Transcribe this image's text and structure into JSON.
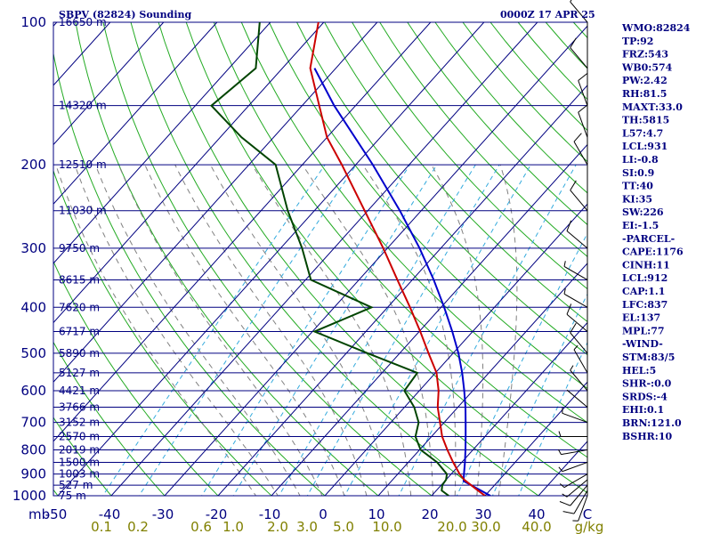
{
  "header": {
    "station": "SBPV (82824) Sounding",
    "time": "0000Z 17 APR 25"
  },
  "indices": [
    "WMO:82824",
    "TP:92",
    "FRZ:543",
    "WB0:574",
    "PW:2.42",
    "RH:81.5",
    "MAXT:33.0",
    "TH:5815",
    "L57:4.7",
    "LCL:931",
    "LI:-0.8",
    "SI:0.9",
    "TT:40",
    "KI:35",
    "SW:226",
    "EI:-1.5",
    "-PARCEL-",
    "CAPE:1176",
    "CINH:11",
    "LCL:912",
    "CAP:1.1",
    "LFC:837",
    "EL:137",
    "MPL:77",
    "-WIND-",
    "STM:83/5",
    "HEL:5",
    "SHR-:0.0",
    "SRDS:-4",
    "EHI:0.1",
    "BRN:121.0",
    "BSHR:10"
  ],
  "colors": {
    "isobar": "#000080",
    "isotherm": "#000080",
    "dry_adiabat": "#22aa22",
    "mixing_ratio": "#33aadd",
    "moist_adiabat": "#808080",
    "temperature": "#cc0000",
    "dewpoint": "#004400",
    "parcel": "#0000cc",
    "frame": "#000080",
    "wind": "#000000"
  },
  "chart_data": {
    "type": "skew-t",
    "pressure_unit_label": "mb",
    "pressure_ticks": [
      "100",
      "200",
      "300",
      "400",
      "500",
      "600",
      "700",
      "800",
      "900",
      "1000"
    ],
    "pressure_tick_values": [
      100,
      200,
      300,
      400,
      500,
      600,
      700,
      800,
      900,
      1000
    ],
    "isobars": [
      {
        "p": 100,
        "height": "16650 m"
      },
      {
        "p": 150,
        "height": "14320 m"
      },
      {
        "p": 200,
        "height": "12510 m"
      },
      {
        "p": 250,
        "height": "11030 m"
      },
      {
        "p": 300,
        "height": "9750 m"
      },
      {
        "p": 350,
        "height": "8615 m"
      },
      {
        "p": 400,
        "height": "7620 m"
      },
      {
        "p": 450,
        "height": "6717 m"
      },
      {
        "p": 500,
        "height": "5890 m"
      },
      {
        "p": 550,
        "height": "5127 m"
      },
      {
        "p": 600,
        "height": "4421 m"
      },
      {
        "p": 650,
        "height": "3766 m"
      },
      {
        "p": 700,
        "height": "3152 m"
      },
      {
        "p": 750,
        "height": "2570 m"
      },
      {
        "p": 800,
        "height": "2019 m"
      },
      {
        "p": 850,
        "height": "1500 m"
      },
      {
        "p": 900,
        "height": "1003 m"
      },
      {
        "p": 950,
        "height": "527 m"
      },
      {
        "p": 1000,
        "height": "75 m"
      }
    ],
    "temperature_ticks": [
      "-50",
      "-40",
      "-30",
      "-20",
      "-10",
      "0",
      "10",
      "20",
      "30",
      "40"
    ],
    "temperature_tick_values": [
      -50,
      -40,
      -30,
      -20,
      -10,
      0,
      10,
      20,
      30,
      40
    ],
    "temperature_unit_label": "C",
    "mixing_ratio_labels": [
      "0.1",
      "0.2",
      "0.6",
      "1.0",
      "2.0",
      "3.0",
      "5.0",
      "10.0",
      "20.0",
      "30.0",
      "40.0"
    ],
    "mixing_ratio_values": [
      0.1,
      0.2,
      0.6,
      1.0,
      2.0,
      3.0,
      5.0,
      10.0,
      20.0,
      30.0,
      40.0
    ],
    "mixing_ratio_unit_label": "g/kg",
    "temperature_profile": {
      "p": [
        1000,
        975,
        950,
        925,
        900,
        850,
        800,
        750,
        700,
        650,
        600,
        550,
        500,
        450,
        400,
        350,
        300,
        250,
        200,
        175,
        150,
        125,
        100
      ],
      "t": [
        30.0,
        27.8,
        25.6,
        23.4,
        21.6,
        18.4,
        15.2,
        12.0,
        9.2,
        6.2,
        3.6,
        0.2,
        -4.6,
        -9.8,
        -15.8,
        -22.8,
        -30.8,
        -40.6,
        -52.6,
        -60.0,
        -66.8,
        -74.8,
        -81.0
      ]
    },
    "dewpoint_profile": {
      "p": [
        1000,
        975,
        950,
        925,
        900,
        850,
        800,
        750,
        700,
        650,
        600,
        550,
        500,
        450,
        400,
        350,
        300,
        250,
        200,
        175,
        150,
        125,
        100
      ],
      "td": [
        23.2,
        21.0,
        20.2,
        20.0,
        19.2,
        15.4,
        10.2,
        7.0,
        5.2,
        1.8,
        -2.8,
        -3.4,
        -16.0,
        -29.6,
        -23.0,
        -39.0,
        -46.0,
        -55.0,
        -65.0,
        -76.0,
        -87.0,
        -85.0,
        -92.0
      ]
    },
    "parcel_profile": {
      "p": [
        1000,
        931,
        900,
        850,
        800,
        750,
        700,
        650,
        600,
        550,
        500,
        450,
        400,
        350,
        300,
        250,
        200,
        150,
        125
      ],
      "t": [
        31.0,
        23.5,
        22.4,
        20.6,
        18.6,
        16.4,
        14.0,
        11.4,
        8.4,
        5.0,
        1.0,
        -3.8,
        -9.4,
        -16.0,
        -24.0,
        -34.0,
        -46.8,
        -64.0,
        -74.0
      ]
    },
    "wind_barbs": [
      {
        "p": 1000,
        "dir": 200,
        "spd": 8
      },
      {
        "p": 975,
        "dir": 210,
        "spd": 10
      },
      {
        "p": 950,
        "dir": 220,
        "spd": 10
      },
      {
        "p": 925,
        "dir": 230,
        "spd": 8
      },
      {
        "p": 900,
        "dir": 240,
        "spd": 6
      },
      {
        "p": 850,
        "dir": 250,
        "spd": 5
      },
      {
        "p": 800,
        "dir": 260,
        "spd": 5
      },
      {
        "p": 750,
        "dir": 270,
        "spd": 6
      },
      {
        "p": 700,
        "dir": 290,
        "spd": 5
      },
      {
        "p": 650,
        "dir": 310,
        "spd": 4
      },
      {
        "p": 600,
        "dir": 320,
        "spd": 6
      },
      {
        "p": 550,
        "dir": 330,
        "spd": 8
      },
      {
        "p": 500,
        "dir": 320,
        "spd": 10
      },
      {
        "p": 450,
        "dir": 310,
        "spd": 10
      },
      {
        "p": 400,
        "dir": 300,
        "spd": 8
      },
      {
        "p": 350,
        "dir": 300,
        "spd": 8
      },
      {
        "p": 300,
        "dir": 310,
        "spd": 10
      },
      {
        "p": 250,
        "dir": 320,
        "spd": 12
      },
      {
        "p": 200,
        "dir": 330,
        "spd": 10
      },
      {
        "p": 175,
        "dir": 340,
        "spd": 10
      },
      {
        "p": 150,
        "dir": 340,
        "spd": 12
      },
      {
        "p": 125,
        "dir": 320,
        "spd": 10
      },
      {
        "p": 100,
        "dir": 320,
        "spd": 10
      }
    ]
  }
}
